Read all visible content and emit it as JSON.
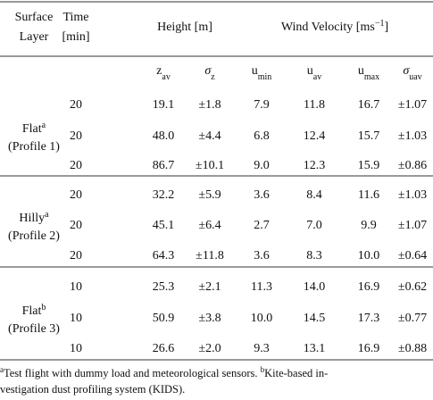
{
  "table": {
    "header": {
      "surface_layer": [
        "Surface",
        "Layer"
      ],
      "time": [
        "Time",
        "[min]"
      ],
      "height": "Height [m]",
      "wind_velocity": {
        "text": "Wind Velocity [ms",
        "sup": "−1",
        "end": "]"
      }
    },
    "subheader": [
      {
        "base": "z",
        "sub": "av"
      },
      {
        "base": "σ",
        "sub": "z"
      },
      {
        "base": "u",
        "sub": "min"
      },
      {
        "base": "u",
        "sub": "av"
      },
      {
        "base": "u",
        "sub": "max"
      },
      {
        "base": "σ",
        "sub": "uav"
      }
    ],
    "groups": [
      {
        "label": {
          "text": "Flat",
          "sup": "a",
          "profile": "(Profile 1)"
        },
        "rows": [
          [
            "20",
            "19.1",
            "±1.8",
            "7.9",
            "11.8",
            "16.7",
            "±1.07"
          ],
          [
            "20",
            "48.0",
            "±4.4",
            "6.8",
            "12.4",
            "15.7",
            "±1.03"
          ],
          [
            "20",
            "86.7",
            "±10.1",
            "9.0",
            "12.3",
            "15.9",
            "±0.86"
          ]
        ]
      },
      {
        "label": {
          "text": "Hilly",
          "sup": "a",
          "profile": "(Profile 2)"
        },
        "rows": [
          [
            "20",
            "32.2",
            "±5.9",
            "3.6",
            "8.4",
            "11.6",
            "±1.03"
          ],
          [
            "20",
            "45.1",
            "±6.4",
            "2.7",
            "7.0",
            "9.9",
            "±1.07"
          ],
          [
            "20",
            "64.3",
            "±11.8",
            "3.6",
            "8.3",
            "10.0",
            "±0.64"
          ]
        ]
      },
      {
        "label": {
          "text": "Flat",
          "sup": "b",
          "profile": "(Profile 3)"
        },
        "rows": [
          [
            "10",
            "25.3",
            "±2.1",
            "11.3",
            "14.0",
            "16.9",
            "±0.62"
          ],
          [
            "10",
            "50.9",
            "±3.8",
            "10.0",
            "14.5",
            "17.3",
            "±0.77"
          ],
          [
            "10",
            "26.6",
            "±2.0",
            "9.3",
            "13.1",
            "16.9",
            "±0.88"
          ]
        ]
      }
    ],
    "footnotes": {
      "a": {
        "sup": "a",
        "text": "Test flight with dummy load and meteorological sensors."
      },
      "b": {
        "sup": "b",
        "lines": [
          "Kite-based in-",
          "vestigation dust profiling system (KIDS)."
        ]
      }
    }
  }
}
